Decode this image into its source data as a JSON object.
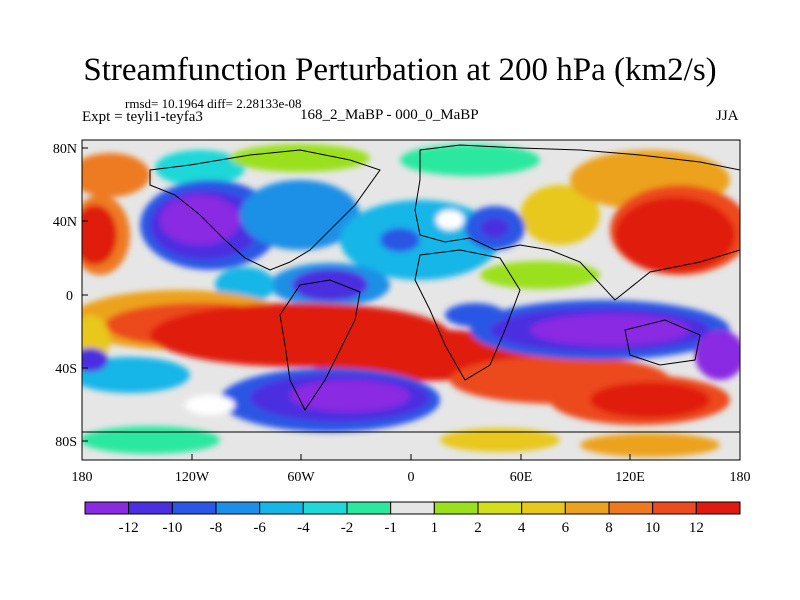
{
  "title": "Streamfunction Perturbation at 200 hPa (km2/s)",
  "stats": "rmsd= 10.1964 diff= 2.28133e-08",
  "experiment": "Expt = teyli1-teyfa3",
  "difference_label": "168_2_MaBP - 000_0_MaBP",
  "season": "JJA",
  "map": {
    "x_ticks": [
      "180",
      "120W",
      "60W",
      "0",
      "60E",
      "120E",
      "180"
    ],
    "y_ticks": [
      "80N",
      "40N",
      "0",
      "40S",
      "80S"
    ]
  },
  "colorbar": {
    "colors": [
      "#8a2be2",
      "#4b2fe0",
      "#2a57e5",
      "#1e8fe6",
      "#17b6e8",
      "#1fd8d8",
      "#2be8a0",
      "#e6e6e6",
      "#9be01c",
      "#d4df19",
      "#e8c81a",
      "#eca21e",
      "#ee7a20",
      "#ec4a1f",
      "#e01a10"
    ],
    "labels": [
      "-12",
      "-10",
      "-8",
      "-6",
      "-4",
      "-2",
      "-1",
      "1",
      "2",
      "4",
      "6",
      "8",
      "10",
      "12"
    ]
  }
}
